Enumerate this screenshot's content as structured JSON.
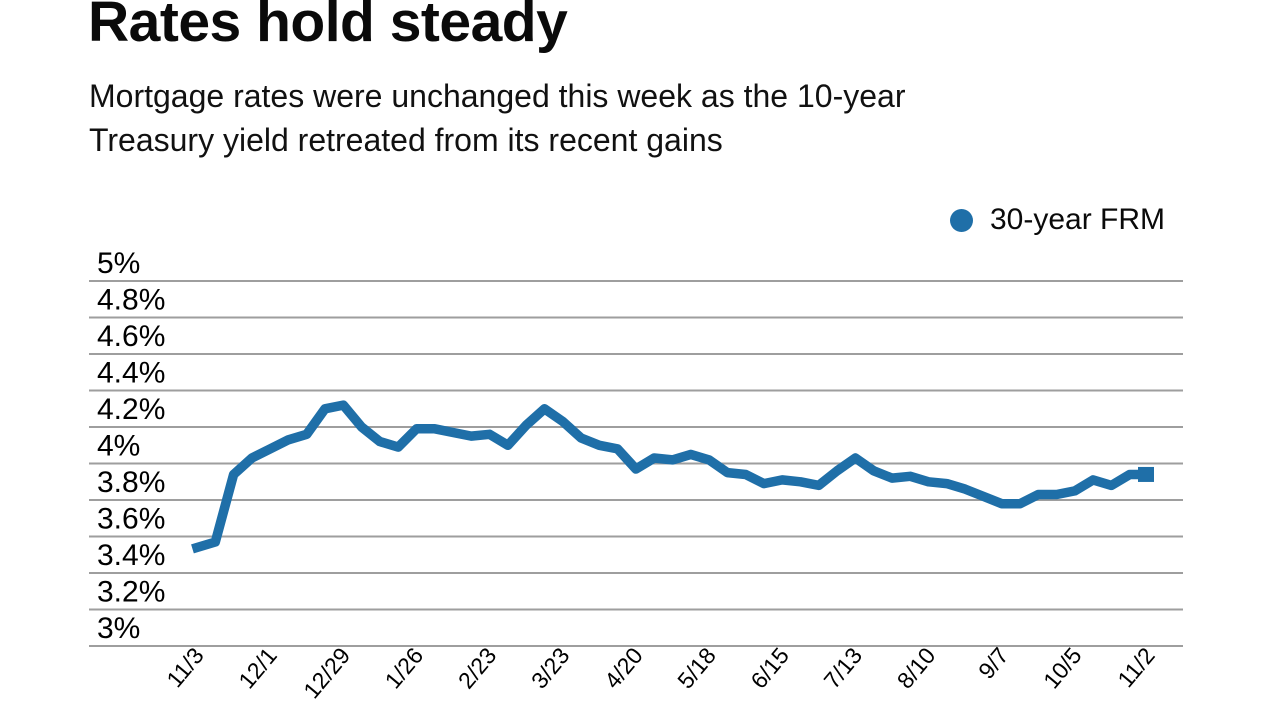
{
  "header": {
    "title": "Rates hold steady",
    "subtitle_line1": "Mortgage rates were unchanged this week as the 10-year",
    "subtitle_line2": "Treasury yield retreated from its recent gains"
  },
  "legend": {
    "label": "30-year FRM",
    "dot_color": "#1f6fa8"
  },
  "chart_data": {
    "type": "line",
    "title": "Rates hold steady",
    "series": [
      {
        "name": "30-year FRM",
        "color": "#1f6fa8",
        "values": [
          3.54,
          3.57,
          3.94,
          4.03,
          4.08,
          4.13,
          4.16,
          4.3,
          4.32,
          4.2,
          4.12,
          4.09,
          4.19,
          4.19,
          4.17,
          4.15,
          4.16,
          4.1,
          4.21,
          4.3,
          4.23,
          4.14,
          4.1,
          4.08,
          3.97,
          4.03,
          4.02,
          4.05,
          4.02,
          3.95,
          3.94,
          3.89,
          3.91,
          3.9,
          3.88,
          3.96,
          4.03,
          3.96,
          3.92,
          3.93,
          3.9,
          3.89,
          3.86,
          3.82,
          3.78,
          3.78,
          3.83,
          3.83,
          3.85,
          3.91,
          3.88,
          3.94,
          3.94
        ]
      }
    ],
    "x_tick_every": 4,
    "x_tick_labels": [
      "11/3",
      "12/1",
      "12/29",
      "1/26",
      "2/23",
      "3/23",
      "4/20",
      "5/18",
      "6/15",
      "7/13",
      "8/10",
      "9/7",
      "10/5",
      "11/2"
    ],
    "y_ticks": [
      {
        "value": 5.0,
        "label": "5%"
      },
      {
        "value": 4.8,
        "label": "4.8%"
      },
      {
        "value": 4.6,
        "label": "4.6%"
      },
      {
        "value": 4.4,
        "label": "4.4%"
      },
      {
        "value": 4.2,
        "label": "4.2%"
      },
      {
        "value": 4.0,
        "label": "4%"
      },
      {
        "value": 3.8,
        "label": "3.8%"
      },
      {
        "value": 3.6,
        "label": "3.6%"
      },
      {
        "value": 3.4,
        "label": "3.4%"
      },
      {
        "value": 3.2,
        "label": "3.2%"
      },
      {
        "value": 3.0,
        "label": "3%"
      }
    ],
    "ylim": [
      3.0,
      5.0
    ],
    "xlabel": "",
    "ylabel": "",
    "grid": "horizontal-only",
    "grid_color": "#9e9e9e",
    "legend_position": "top-right"
  }
}
